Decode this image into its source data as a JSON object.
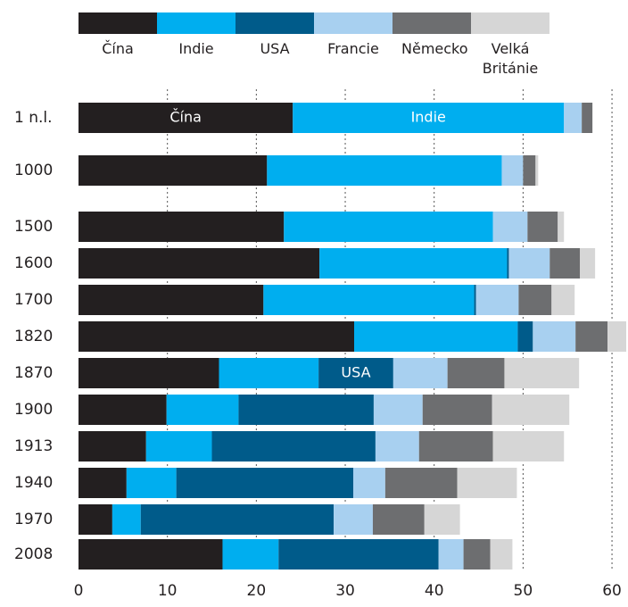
{
  "chart_data": {
    "type": "stacked-bar-horizontal",
    "categories": [
      "1 n.l.",
      "1000",
      "1500",
      "1600",
      "1700",
      "1820",
      "1870",
      "1900",
      "1913",
      "1940",
      "1970",
      "2008"
    ],
    "series": [
      {
        "name": "Čína",
        "color": "#231f20",
        "values": [
          24.1,
          21.2,
          23.1,
          27.1,
          20.8,
          31.0,
          15.8,
          9.9,
          7.6,
          5.4,
          3.8,
          16.2
        ]
      },
      {
        "name": "Indie",
        "color": "#00aeef",
        "values": [
          30.5,
          26.4,
          23.5,
          21.1,
          23.7,
          18.4,
          11.2,
          8.1,
          7.4,
          5.6,
          3.2,
          6.3
        ]
      },
      {
        "name": "USA",
        "color": "#005b8a",
        "values": [
          0,
          0,
          0,
          0.2,
          0.2,
          1.7,
          8.4,
          15.2,
          18.4,
          19.9,
          21.7,
          18.0
        ]
      },
      {
        "name": "Francie",
        "color": "#a8d0f0",
        "values": [
          2.0,
          2.4,
          3.9,
          4.6,
          4.8,
          4.8,
          6.1,
          5.5,
          4.9,
          3.6,
          4.4,
          2.8
        ]
      },
      {
        "name": "Německo",
        "color": "#6d6e70",
        "values": [
          1.2,
          1.4,
          3.4,
          3.4,
          3.7,
          3.6,
          6.4,
          7.8,
          8.3,
          8.1,
          5.8,
          3.0
        ]
      },
      {
        "name": "Velká Británie",
        "color": "#d6d6d6",
        "values": [
          0,
          0.3,
          0.7,
          1.7,
          2.6,
          2.1,
          8.4,
          8.7,
          8.0,
          6.7,
          4.0,
          2.5
        ]
      }
    ],
    "xlim": [
      0,
      61.8
    ],
    "xticks": [
      0,
      10,
      20,
      30,
      40,
      50,
      60
    ],
    "grid": true
  }
}
